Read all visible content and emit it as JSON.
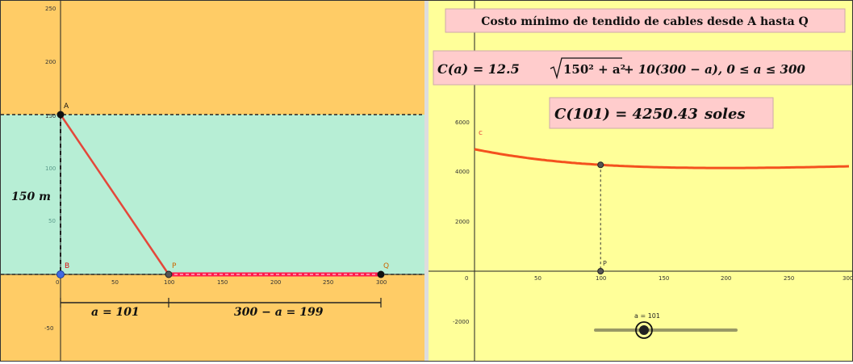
{
  "colors": {
    "land": "#ffcc66",
    "river": "#b7eed5",
    "right_bg": "#ffff99",
    "cable": "#e4473a",
    "land_cable": "#ff1a4b",
    "curve": "#f4511e",
    "box_bg": "#ffcccc",
    "point_dark": "#222222",
    "point_blue": "#4169e1",
    "label_red": "#d01010",
    "label_orange": "#cc6600"
  },
  "left_panel": {
    "x_ticks": [
      "0",
      "50",
      "100",
      "150",
      "200",
      "250",
      "300"
    ],
    "y_ticks": [
      "250",
      "200",
      "150",
      "100",
      "50",
      "-50"
    ],
    "points": {
      "A": "A",
      "B": "B",
      "P": "P",
      "Q": "Q"
    },
    "width_label": "150 m",
    "a_label": "a = 101",
    "rest_label": "300 − a = 199"
  },
  "right_panel": {
    "title": "Costo mínimo de tendido de cables desde A hasta Q",
    "formula_lhs": "C(a) = 12.5",
    "formula_sqrt": "150² + a²",
    "formula_rhs": "+ 10(300 − a),  0 ≤ a ≤ 300",
    "value_label": "C(101) = 4250.43",
    "value_unit": "soles",
    "curve_label": "c",
    "point_label": "P",
    "slider_label": "a = 101",
    "x_ticks": [
      "0",
      "50",
      "100",
      "150",
      "200",
      "250",
      "300"
    ],
    "y_ticks": [
      "6000",
      "4000",
      "2000",
      "-2000"
    ]
  },
  "chart_data": {
    "type": "line",
    "function": "C(a) = 12.5*sqrt(150^2 + a^2) + 10*(300 - a)",
    "x": [
      0,
      25,
      50,
      75,
      100,
      125,
      150,
      175,
      200,
      225,
      250,
      275,
      300
    ],
    "y": [
      4875,
      4651.2,
      4476.4,
      4346.3,
      4253.4,
      4190.8,
      4151.6,
      4131.2,
      4125.0,
      4130.2,
      4144.2,
      4165.3,
      4192.6
    ],
    "marked_point": {
      "a": 101,
      "C": 4250.43
    },
    "xlim": [
      -30,
      310
    ],
    "ylim": [
      -3000,
      6500
    ],
    "slider": {
      "min": 0,
      "max": 300,
      "value": 101
    }
  }
}
